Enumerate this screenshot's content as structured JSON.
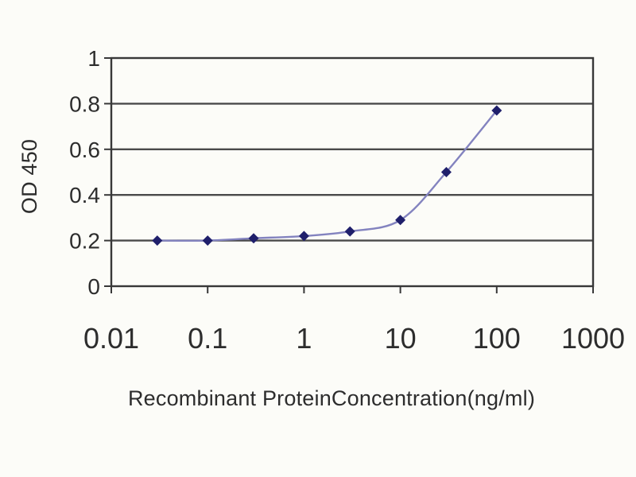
{
  "chart_data": {
    "type": "line",
    "title": "",
    "xlabel": "Recombinant ProteinConcentration(ng/ml)",
    "ylabel": "OD 450",
    "x_scale": "log",
    "xlim": [
      0.01,
      1000
    ],
    "ylim": [
      0,
      1
    ],
    "x_ticks": {
      "values": [
        0.01,
        0.1,
        1,
        10,
        100,
        1000
      ],
      "labels": [
        "0.01",
        "0.1",
        "1",
        "10",
        "100",
        "1000"
      ]
    },
    "y_ticks": {
      "values": [
        0,
        0.2,
        0.4,
        0.6,
        0.8,
        1
      ],
      "labels": [
        "0",
        "0.2",
        "0.4",
        "0.6",
        "0.8",
        "1"
      ]
    },
    "grid": "horizontal",
    "legend": "none",
    "series": [
      {
        "name": "OD 450",
        "marker": "diamond",
        "x": [
          0.03,
          0.1,
          0.3,
          1,
          3,
          10,
          30,
          100
        ],
        "y": [
          0.2,
          0.2,
          0.21,
          0.22,
          0.24,
          0.29,
          0.5,
          0.77
        ]
      }
    ]
  },
  "style": {
    "marker_color": "#1f1f6b",
    "line_color": "#8383bf",
    "grid_color": "#4a4a4a",
    "frame_color": "#383838",
    "tick_color": "#383838",
    "text_color": "#2d2d2d",
    "background": "#fcfcf8"
  }
}
